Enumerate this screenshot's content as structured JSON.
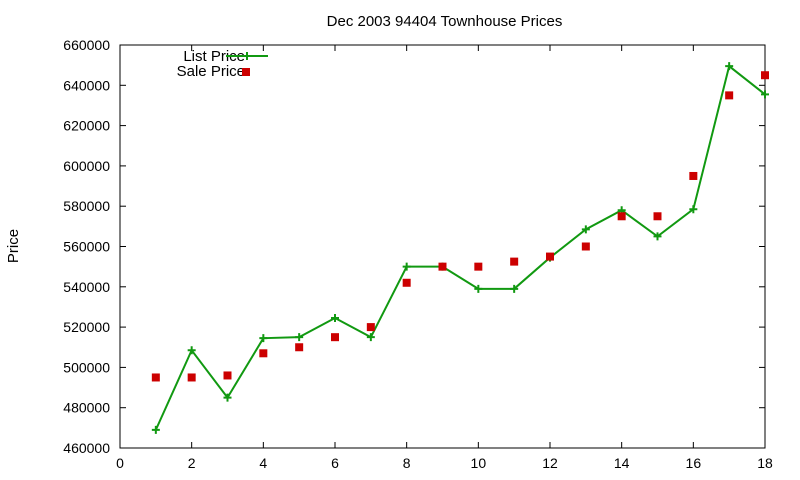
{
  "chart_data": {
    "type": "line",
    "title": "Dec 2003 94404 Townhouse Prices",
    "xlabel": "",
    "ylabel": "Price",
    "xlim": [
      0,
      18
    ],
    "ylim": [
      460000,
      660000
    ],
    "x_ticks": [
      0,
      2,
      4,
      6,
      8,
      10,
      12,
      14,
      16,
      18
    ],
    "y_ticks": [
      460000,
      480000,
      500000,
      520000,
      540000,
      560000,
      580000,
      600000,
      620000,
      640000,
      660000
    ],
    "grid": false,
    "legend_position": "top-left",
    "series": [
      {
        "name": "List Price",
        "style": "line+plus",
        "color": "#119911",
        "x": [
          1,
          2,
          3,
          4,
          5,
          6,
          7,
          8,
          9,
          10,
          11,
          12,
          13,
          14,
          15,
          16,
          17,
          18
        ],
        "y": [
          469000,
          508500,
          485000,
          514500,
          515000,
          524500,
          515000,
          550000,
          550000,
          539000,
          539000,
          554500,
          568500,
          578000,
          565000,
          578500,
          649500,
          635500
        ]
      },
      {
        "name": "Sale Price",
        "style": "square",
        "color": "#cc0000",
        "x": [
          1,
          2,
          3,
          4,
          5,
          6,
          7,
          8,
          9,
          10,
          11,
          12,
          13,
          14,
          15,
          16,
          17,
          18
        ],
        "y": [
          495000,
          495000,
          496000,
          507000,
          510000,
          515000,
          520000,
          542000,
          550000,
          550000,
          552500,
          555000,
          560000,
          575000,
          575000,
          595000,
          635000,
          645000
        ]
      }
    ]
  }
}
